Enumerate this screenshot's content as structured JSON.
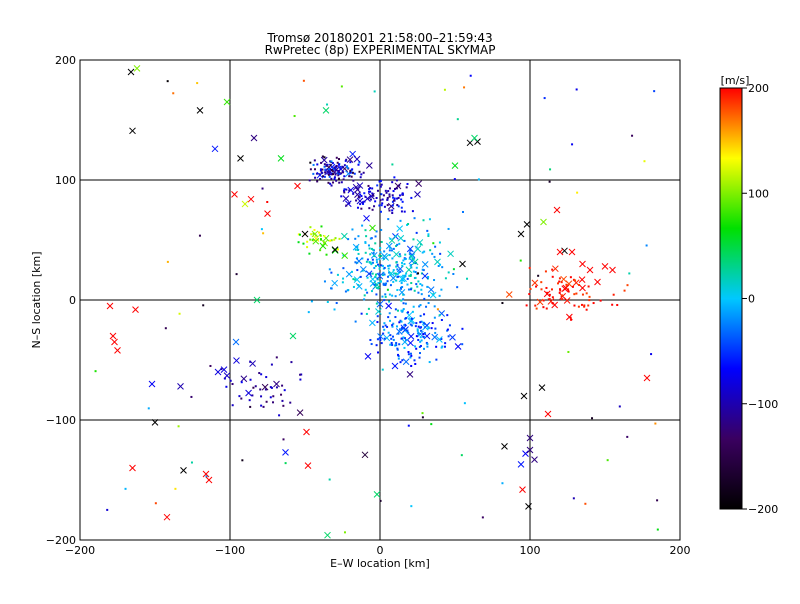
{
  "chart_data": {
    "type": "scatter",
    "title": "Tromsø 20180201 21:58:00–21:59:43",
    "subtitle": "RwPretec (8p) EXPERIMENTAL SKYMAP",
    "xlabel": "E–W location [km]",
    "ylabel": "N–S location [km]",
    "xlim": [
      -200,
      200
    ],
    "ylim": [
      -200,
      200
    ],
    "xticks": [
      -200,
      -100,
      0,
      100,
      200
    ],
    "yticks": [
      -200,
      -100,
      0,
      100,
      200
    ],
    "grid": true,
    "colorbar": {
      "label": "[m/s]",
      "min": -200,
      "max": 200,
      "ticks": [
        200,
        100,
        0,
        -100,
        -200
      ],
      "colors": [
        "#000000",
        "#3a0060",
        "#0000ff",
        "#00c8ff",
        "#00e000",
        "#ffff00",
        "#ff0000"
      ]
    },
    "markers": {
      "dot": "small",
      "cross": "x"
    },
    "clusters": [
      {
        "x": -30,
        "y": 108,
        "sx": 12,
        "sy": 8,
        "n": 120,
        "vmin": -160,
        "vmax": -20
      },
      {
        "x": 0,
        "y": 85,
        "sx": 15,
        "sy": 10,
        "n": 110,
        "vmin": -130,
        "vmax": -50
      },
      {
        "x": 8,
        "y": 25,
        "sx": 26,
        "sy": 26,
        "n": 320,
        "vmin": -50,
        "vmax": 30
      },
      {
        "x": 20,
        "y": -30,
        "sx": 18,
        "sy": 14,
        "n": 160,
        "vmin": -70,
        "vmax": 0
      },
      {
        "x": -40,
        "y": 50,
        "sx": 10,
        "sy": 10,
        "n": 40,
        "vmin": 60,
        "vmax": 140
      },
      {
        "x": 125,
        "y": 5,
        "sx": 22,
        "sy": 14,
        "n": 80,
        "vmin": 180,
        "vmax": 210
      },
      {
        "x": -80,
        "y": -70,
        "sx": 20,
        "sy": 15,
        "n": 50,
        "vmin": -140,
        "vmax": -70
      }
    ],
    "points": [
      {
        "x": -166,
        "y": 190,
        "v": -200
      },
      {
        "x": -165,
        "y": 141,
        "v": -200
      },
      {
        "x": -162,
        "y": 193,
        "v": 100
      },
      {
        "x": -102,
        "y": 165,
        "v": 80
      },
      {
        "x": -93,
        "y": 118,
        "v": -200
      },
      {
        "x": -110,
        "y": 126,
        "v": -60
      },
      {
        "x": -84,
        "y": 135,
        "v": -120
      },
      {
        "x": -120,
        "y": 158,
        "v": -200
      },
      {
        "x": -97,
        "y": 88,
        "v": 200
      },
      {
        "x": -86,
        "y": 84,
        "v": 200
      },
      {
        "x": -90,
        "y": 80,
        "v": 120
      },
      {
        "x": -75,
        "y": 72,
        "v": 200
      },
      {
        "x": -180,
        "y": -5,
        "v": 200
      },
      {
        "x": -178,
        "y": -30,
        "v": 200
      },
      {
        "x": -177,
        "y": -35,
        "v": 200
      },
      {
        "x": -175,
        "y": -42,
        "v": 200
      },
      {
        "x": -163,
        "y": -8,
        "v": 200
      },
      {
        "x": -152,
        "y": -70,
        "v": -70
      },
      {
        "x": -133,
        "y": -72,
        "v": -100
      },
      {
        "x": -150,
        "y": -102,
        "v": -200
      },
      {
        "x": -165,
        "y": -140,
        "v": 200
      },
      {
        "x": -131,
        "y": -142,
        "v": -200
      },
      {
        "x": -116,
        "y": -145,
        "v": 200
      },
      {
        "x": -114,
        "y": -150,
        "v": 200
      },
      {
        "x": -142,
        "y": -181,
        "v": 200
      },
      {
        "x": -108,
        "y": -60,
        "v": -80
      },
      {
        "x": -104,
        "y": -58,
        "v": -80
      },
      {
        "x": -102,
        "y": -63,
        "v": -90
      },
      {
        "x": -96,
        "y": -35,
        "v": -30
      },
      {
        "x": -82,
        "y": 0,
        "v": 40
      },
      {
        "x": -58,
        "y": -30,
        "v": 40
      },
      {
        "x": -69,
        "y": -70,
        "v": -120
      },
      {
        "x": -63,
        "y": -127,
        "v": -60
      },
      {
        "x": -49,
        "y": -110,
        "v": 200
      },
      {
        "x": -48,
        "y": -138,
        "v": 200
      },
      {
        "x": -10,
        "y": -129,
        "v": -160
      },
      {
        "x": -2,
        "y": -162,
        "v": 40
      },
      {
        "x": -35,
        "y": -196,
        "v": 40
      },
      {
        "x": -36,
        "y": 158,
        "v": 40
      },
      {
        "x": -20,
        "y": 117,
        "v": -120
      },
      {
        "x": -30,
        "y": 42,
        "v": -200
      },
      {
        "x": -50,
        "y": 55,
        "v": -200
      },
      {
        "x": 65,
        "y": 132,
        "v": -200
      },
      {
        "x": 60,
        "y": 131,
        "v": -200
      },
      {
        "x": 63,
        "y": 135,
        "v": 40
      },
      {
        "x": 50,
        "y": 112,
        "v": 60
      },
      {
        "x": 55,
        "y": 30,
        "v": -200
      },
      {
        "x": 94,
        "y": 55,
        "v": -200
      },
      {
        "x": 98,
        "y": 63,
        "v": -200
      },
      {
        "x": 118,
        "y": 75,
        "v": 200
      },
      {
        "x": 123,
        "y": 41,
        "v": -200
      },
      {
        "x": 109,
        "y": 65,
        "v": 100
      },
      {
        "x": 120,
        "y": 40,
        "v": 200
      },
      {
        "x": 108,
        "y": -73,
        "v": -200
      },
      {
        "x": 96,
        "y": -80,
        "v": -200
      },
      {
        "x": 112,
        "y": -95,
        "v": 200
      },
      {
        "x": 83,
        "y": -122,
        "v": -200
      },
      {
        "x": 97,
        "y": -128,
        "v": -70
      },
      {
        "x": 100,
        "y": -115,
        "v": -120
      },
      {
        "x": 100,
        "y": -125,
        "v": -120
      },
      {
        "x": 103,
        "y": -133,
        "v": -120
      },
      {
        "x": 94,
        "y": -137,
        "v": -60
      },
      {
        "x": 95,
        "y": -158,
        "v": 200
      },
      {
        "x": 99,
        "y": -172,
        "v": -200
      },
      {
        "x": 178,
        "y": -65,
        "v": 200
      },
      {
        "x": 140,
        "y": 25,
        "v": 200
      },
      {
        "x": 150,
        "y": 28,
        "v": 200
      },
      {
        "x": 155,
        "y": 25,
        "v": 200
      },
      {
        "x": 145,
        "y": 15,
        "v": 200
      },
      {
        "x": 135,
        "y": 30,
        "v": 200
      },
      {
        "x": 135,
        "y": 10,
        "v": 200
      },
      {
        "x": 128,
        "y": 40,
        "v": 200
      },
      {
        "x": 20,
        "y": -62,
        "v": -120
      },
      {
        "x": 10,
        "y": -55,
        "v": -60
      },
      {
        "x": -8,
        "y": -47,
        "v": -70
      },
      {
        "x": 30,
        "y": 20,
        "v": -50
      },
      {
        "x": -5,
        "y": 60,
        "v": 80
      },
      {
        "x": 12,
        "y": 95,
        "v": -130
      },
      {
        "x": -40,
        "y": 104,
        "v": -60
      },
      {
        "x": -15,
        "y": 92,
        "v": -110
      },
      {
        "x": 25,
        "y": 88,
        "v": -100
      },
      {
        "x": -55,
        "y": 95,
        "v": 200
      },
      {
        "x": -66,
        "y": 118,
        "v": 60
      },
      {
        "x": -26,
        "y": 109,
        "v": -80
      }
    ]
  }
}
